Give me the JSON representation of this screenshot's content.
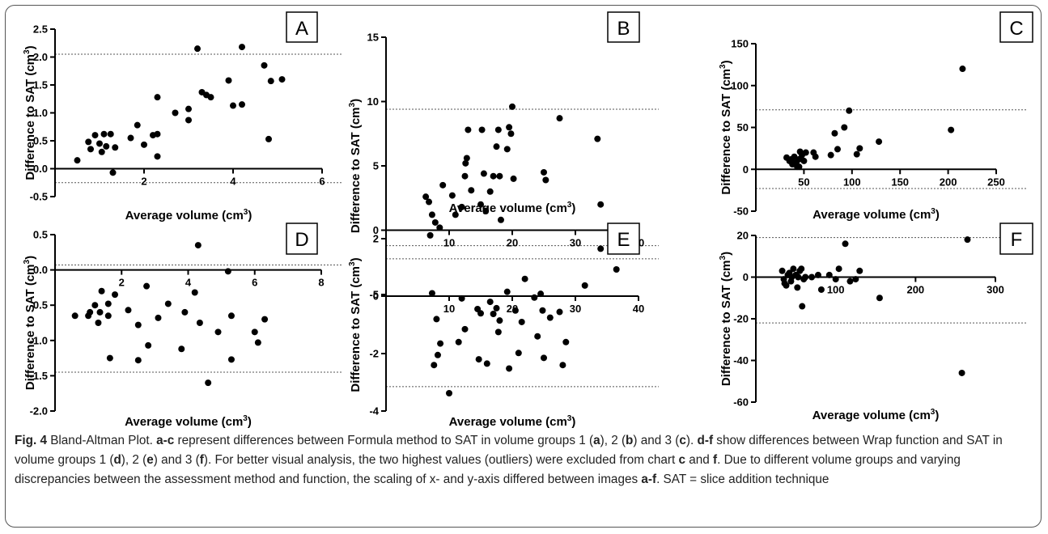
{
  "caption": {
    "fig_label": "Fig. 4",
    "parts": [
      {
        "t": " Bland-Altman Plot. ",
        "b": false
      },
      {
        "t": "a-c",
        "b": true
      },
      {
        "t": " represent differences between Formula method to SAT in volume groups 1 (",
        "b": false
      },
      {
        "t": "a",
        "b": true
      },
      {
        "t": "), 2 (",
        "b": false
      },
      {
        "t": "b",
        "b": true
      },
      {
        "t": ") and 3 (",
        "b": false
      },
      {
        "t": "c",
        "b": true
      },
      {
        "t": "). ",
        "b": false
      },
      {
        "t": "d-f",
        "b": true
      },
      {
        "t": " show differences between Wrap function and SAT in volume groups 1 (",
        "b": false
      },
      {
        "t": "d",
        "b": true
      },
      {
        "t": "), 2 (",
        "b": false
      },
      {
        "t": "e",
        "b": true
      },
      {
        "t": ") and 3 (",
        "b": false
      },
      {
        "t": "f",
        "b": true
      },
      {
        "t": "). For better visual analysis, the two highest values (outliers) were excluded from chart ",
        "b": false
      },
      {
        "t": "c",
        "b": true
      },
      {
        "t": " and ",
        "b": false
      },
      {
        "t": "f",
        "b": true
      },
      {
        "t": ". Due to different volume groups and varying discrepancies between the assessment method and function, the scaling of x- and y-axis differed between images ",
        "b": false
      },
      {
        "t": "a-f",
        "b": true
      },
      {
        "t": ". SAT = slice addition technique",
        "b": false
      }
    ]
  },
  "chart_data": [
    {
      "panel": "A",
      "type": "scatter",
      "xlabel": "Average volume (cm",
      "xlabel_sup": "3",
      "xlabel_end": ")",
      "ylabel": "Difference to SAT (cm",
      "ylabel_sup": "3",
      "ylabel_end": ")",
      "xlim": [
        0,
        6
      ],
      "ylim": [
        -0.5,
        2.5
      ],
      "xticks": [
        2,
        4,
        6
      ],
      "xtick_labels": [
        "2",
        "4",
        "6"
      ],
      "yticks": [
        -0.5,
        0.0,
        0.5,
        1.0,
        1.5,
        2.0,
        2.5
      ],
      "ytick_labels": [
        "-0.5",
        "0.0",
        "0.5",
        "1.0",
        "1.5",
        "2.0",
        "2.5"
      ],
      "hlines": [
        2.05,
        -0.25
      ],
      "points": [
        [
          0.5,
          0.15
        ],
        [
          0.75,
          0.48
        ],
        [
          0.8,
          0.35
        ],
        [
          0.9,
          0.6
        ],
        [
          1.0,
          0.45
        ],
        [
          1.05,
          0.3
        ],
        [
          1.1,
          0.62
        ],
        [
          1.15,
          0.4
        ],
        [
          1.25,
          0.62
        ],
        [
          1.3,
          -0.07
        ],
        [
          1.35,
          0.38
        ],
        [
          1.7,
          0.55
        ],
        [
          1.85,
          0.78
        ],
        [
          2.0,
          0.43
        ],
        [
          2.2,
          0.6
        ],
        [
          2.3,
          0.22
        ],
        [
          2.3,
          0.62
        ],
        [
          2.3,
          1.28
        ],
        [
          2.7,
          1.0
        ],
        [
          3.0,
          1.07
        ],
        [
          3.0,
          0.87
        ],
        [
          3.2,
          2.15
        ],
        [
          3.3,
          1.37
        ],
        [
          3.4,
          1.32
        ],
        [
          3.5,
          1.28
        ],
        [
          3.9,
          1.58
        ],
        [
          4.0,
          1.13
        ],
        [
          4.2,
          1.15
        ],
        [
          4.2,
          2.18
        ],
        [
          4.7,
          1.85
        ],
        [
          4.8,
          0.53
        ],
        [
          4.85,
          1.57
        ],
        [
          5.1,
          1.6
        ]
      ]
    },
    {
      "panel": "B",
      "type": "scatter",
      "xlabel": "Average volume (cm",
      "xlabel_sup": "3",
      "xlabel_end": ")",
      "ylabel": "Difference to SAT (cm",
      "ylabel_sup": "3",
      "ylabel_end": ")",
      "xlim": [
        0,
        40
      ],
      "ylim": [
        -5,
        15
      ],
      "xticks": [
        10,
        20,
        30,
        40
      ],
      "xtick_labels": [
        "10",
        "20",
        "30",
        "40"
      ],
      "yticks": [
        -5,
        0,
        5,
        10,
        15
      ],
      "ytick_labels": [
        "-5",
        "0",
        "5",
        "10",
        "15"
      ],
      "hlines": [
        9.4,
        -1.2
      ],
      "points": [
        [
          6.3,
          2.6
        ],
        [
          6.8,
          2.2
        ],
        [
          7.0,
          -0.4
        ],
        [
          7.3,
          1.2
        ],
        [
          7.8,
          0.6
        ],
        [
          8.5,
          0.2
        ],
        [
          9.0,
          3.5
        ],
        [
          10.5,
          2.7
        ],
        [
          11.0,
          1.2
        ],
        [
          12.0,
          1.8
        ],
        [
          12.5,
          4.2
        ],
        [
          12.6,
          5.2
        ],
        [
          12.8,
          5.6
        ],
        [
          13.0,
          7.8
        ],
        [
          13.5,
          3.1
        ],
        [
          15.0,
          2.0
        ],
        [
          15.2,
          7.8
        ],
        [
          15.5,
          4.4
        ],
        [
          15.8,
          1.5
        ],
        [
          16.5,
          3.0
        ],
        [
          17.0,
          4.2
        ],
        [
          17.5,
          6.5
        ],
        [
          17.8,
          7.8
        ],
        [
          18.0,
          4.2
        ],
        [
          18.2,
          0.8
        ],
        [
          19.2,
          6.3
        ],
        [
          19.5,
          8.0
        ],
        [
          19.8,
          7.5
        ],
        [
          20.0,
          9.6
        ],
        [
          20.2,
          4.0
        ],
        [
          25.0,
          4.5
        ],
        [
          25.3,
          3.9
        ],
        [
          27.5,
          8.7
        ],
        [
          33.5,
          7.1
        ],
        [
          34.0,
          2.0
        ]
      ]
    },
    {
      "panel": "C",
      "type": "scatter",
      "xlabel": "Average volume (cm",
      "xlabel_sup": "3",
      "xlabel_end": ")",
      "ylabel": "Difference to SAT (cm",
      "ylabel_sup": "3",
      "ylabel_end": ")",
      "xlim": [
        0,
        250
      ],
      "ylim": [
        -50,
        150
      ],
      "xticks": [
        50,
        100,
        150,
        200,
        250
      ],
      "xtick_labels": [
        "50",
        "100",
        "150",
        "200",
        "250"
      ],
      "yticks": [
        -50,
        0,
        50,
        100,
        150
      ],
      "ytick_labels": [
        "-50",
        "0",
        "50",
        "100",
        "150"
      ],
      "hlines": [
        71,
        -23
      ],
      "points": [
        [
          32,
          14
        ],
        [
          35,
          10
        ],
        [
          37,
          12
        ],
        [
          38,
          6
        ],
        [
          40,
          15
        ],
        [
          42,
          8
        ],
        [
          43,
          3
        ],
        [
          45,
          12
        ],
        [
          45,
          3
        ],
        [
          46,
          21
        ],
        [
          48,
          17
        ],
        [
          50,
          10
        ],
        [
          52,
          20
        ],
        [
          60,
          20
        ],
        [
          62,
          15
        ],
        [
          78,
          17
        ],
        [
          82,
          43
        ],
        [
          85,
          24
        ],
        [
          92,
          50
        ],
        [
          97,
          70
        ],
        [
          105,
          18
        ],
        [
          108,
          25
        ],
        [
          128,
          33
        ],
        [
          203,
          47
        ],
        [
          215,
          120
        ]
      ]
    },
    {
      "panel": "D",
      "type": "scatter",
      "xlabel": "Average volume (cm",
      "xlabel_sup": "3",
      "xlabel_end": ")",
      "ylabel": "Difference to SAT (cm",
      "ylabel_sup": "3",
      "ylabel_end": ")",
      "xlim": [
        0,
        8
      ],
      "ylim": [
        -2.0,
        0.5
      ],
      "xticks": [
        2,
        4,
        6,
        8
      ],
      "xtick_labels": [
        "2",
        "4",
        "6",
        "8"
      ],
      "yticks": [
        -2.0,
        -1.5,
        -1.0,
        -0.5,
        0.0,
        0.5
      ],
      "ytick_labels": [
        "-2.0",
        "-1.5",
        "-1.0",
        "-0.5",
        "0.0",
        "0.5"
      ],
      "hlines": [
        0.07,
        -1.45
      ],
      "points": [
        [
          0.6,
          -0.65
        ],
        [
          1.0,
          -0.65
        ],
        [
          1.05,
          -0.6
        ],
        [
          1.2,
          -0.5
        ],
        [
          1.3,
          -0.75
        ],
        [
          1.35,
          -0.6
        ],
        [
          1.4,
          -0.3
        ],
        [
          1.6,
          -0.65
        ],
        [
          1.6,
          -0.48
        ],
        [
          1.65,
          -1.25
        ],
        [
          1.8,
          -0.35
        ],
        [
          2.2,
          -0.57
        ],
        [
          2.5,
          -0.78
        ],
        [
          2.5,
          -1.28
        ],
        [
          2.75,
          -0.23
        ],
        [
          2.8,
          -1.07
        ],
        [
          3.1,
          -0.68
        ],
        [
          3.4,
          -0.48
        ],
        [
          3.8,
          -1.12
        ],
        [
          3.9,
          -0.6
        ],
        [
          4.2,
          -0.32
        ],
        [
          4.3,
          0.35
        ],
        [
          4.35,
          -0.75
        ],
        [
          4.6,
          -1.6
        ],
        [
          4.9,
          -0.88
        ],
        [
          5.2,
          -0.02
        ],
        [
          5.3,
          -0.65
        ],
        [
          5.3,
          -1.27
        ],
        [
          6.0,
          -0.88
        ],
        [
          6.1,
          -1.03
        ],
        [
          6.3,
          -0.7
        ]
      ]
    },
    {
      "panel": "E",
      "type": "scatter",
      "xlabel": "Average volume (cm",
      "xlabel_sup": "3",
      "xlabel_end": ")",
      "ylabel": "Difference to SAT (cm",
      "ylabel_sup": "3",
      "ylabel_end": ")",
      "xlim": [
        0,
        40
      ],
      "ylim": [
        -4,
        2
      ],
      "xticks": [
        10,
        20,
        30,
        40
      ],
      "xtick_labels": [
        "10",
        "20",
        "30",
        "40"
      ],
      "yticks": [
        -4,
        -2,
        0,
        2
      ],
      "ytick_labels": [
        "-4",
        "-2",
        "0",
        "2"
      ],
      "hlines": [
        1.3,
        -3.15
      ],
      "points": [
        [
          7.3,
          0.1
        ],
        [
          7.6,
          -2.4
        ],
        [
          8.0,
          -0.8
        ],
        [
          8.2,
          -2.05
        ],
        [
          8.6,
          -1.65
        ],
        [
          10.0,
          -3.38
        ],
        [
          11.5,
          -1.6
        ],
        [
          12.0,
          -0.08
        ],
        [
          12.5,
          -1.15
        ],
        [
          14.5,
          -0.45
        ],
        [
          14.7,
          -2.2
        ],
        [
          15.0,
          -0.6
        ],
        [
          16.0,
          -2.35
        ],
        [
          16.5,
          -0.2
        ],
        [
          17.0,
          -0.62
        ],
        [
          17.5,
          -0.42
        ],
        [
          17.8,
          -1.25
        ],
        [
          18.0,
          -0.85
        ],
        [
          19.2,
          0.15
        ],
        [
          19.5,
          -2.52
        ],
        [
          20.5,
          -0.5
        ],
        [
          21.0,
          -1.98
        ],
        [
          21.5,
          -0.9
        ],
        [
          22.0,
          0.6
        ],
        [
          23.5,
          -0.05
        ],
        [
          24.0,
          -1.4
        ],
        [
          24.5,
          0.08
        ],
        [
          24.8,
          -0.5
        ],
        [
          25.0,
          -2.15
        ],
        [
          26.0,
          -0.75
        ],
        [
          27.5,
          -0.55
        ],
        [
          28.0,
          -2.4
        ],
        [
          28.5,
          -1.6
        ],
        [
          31.5,
          0.37
        ],
        [
          34.0,
          1.65
        ],
        [
          36.5,
          0.93
        ]
      ]
    },
    {
      "panel": "F",
      "type": "scatter",
      "xlabel": "Average volume (cm",
      "xlabel_sup": "3",
      "xlabel_end": ")",
      "ylabel": "Difference to SAT (cm",
      "ylabel_sup": "3",
      "ylabel_end": ")",
      "xlim": [
        0,
        300
      ],
      "ylim": [
        -60,
        20
      ],
      "xticks": [
        100,
        200,
        300
      ],
      "xtick_labels": [
        "100",
        "200",
        "300"
      ],
      "yticks": [
        -60,
        -40,
        -20,
        0,
        20
      ],
      "ytick_labels": [
        "-60",
        "-40",
        "-20",
        "0",
        "20"
      ],
      "hlines": [
        19,
        -22
      ],
      "points": [
        [
          33,
          3
        ],
        [
          35,
          -1
        ],
        [
          36,
          -3
        ],
        [
          38,
          -4
        ],
        [
          40,
          1
        ],
        [
          42,
          2
        ],
        [
          44,
          -2
        ],
        [
          45,
          0
        ],
        [
          47,
          4
        ],
        [
          50,
          1
        ],
        [
          52,
          -5
        ],
        [
          53,
          0
        ],
        [
          55,
          3
        ],
        [
          57,
          4
        ],
        [
          58,
          -14
        ],
        [
          60,
          -1
        ],
        [
          62,
          0
        ],
        [
          70,
          0
        ],
        [
          78,
          1
        ],
        [
          82,
          -6
        ],
        [
          92,
          1
        ],
        [
          100,
          -1
        ],
        [
          104,
          4
        ],
        [
          112,
          16
        ],
        [
          118,
          -2
        ],
        [
          125,
          -1
        ],
        [
          130,
          3
        ],
        [
          155,
          -10
        ],
        [
          265,
          18
        ],
        [
          258,
          -46
        ]
      ]
    }
  ]
}
